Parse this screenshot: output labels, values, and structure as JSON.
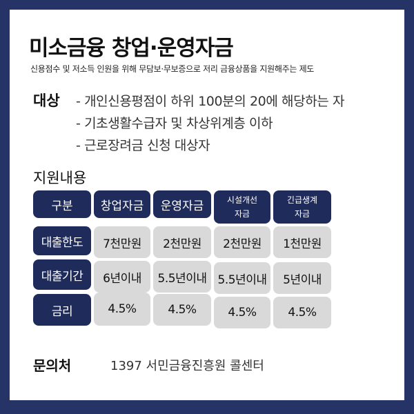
{
  "title": "미소금융 창업·운영자금",
  "subtitle": "신용점수 및 저소득 인원을 위해 무담보·무보증으로 저리 금융상품을 지원해주는 제도",
  "target": {
    "label": "대상",
    "lines": [
      "- 개인신용평점이 하위 100분의 20에 해당하는 자",
      "- 기초생활수급자 및 차상위계층 이하",
      "- 근로장려금 신청 대상자"
    ]
  },
  "support": {
    "label": "지원내용",
    "header": {
      "corner": "구분",
      "columns": [
        {
          "line1": "창업자금",
          "line2": ""
        },
        {
          "line1": "운영자금",
          "line2": ""
        },
        {
          "line1": "시설개선",
          "line2": "자금"
        },
        {
          "line1": "긴급생계",
          "line2": "자금"
        }
      ]
    },
    "rows": [
      {
        "label": "대출한도",
        "values": [
          "7천만원",
          "2천만원",
          "2천만원",
          "1천만원"
        ]
      },
      {
        "label": "대출기간",
        "values": [
          "6년이내",
          "5.5년이내",
          "5.5년이내",
          "5년이내"
        ]
      },
      {
        "label": "금리",
        "values": [
          "4.5%",
          "4.5%",
          "4.5%",
          "4.5%"
        ]
      }
    ]
  },
  "contact": {
    "label": "문의처",
    "value": "1397 서민금융진흥원 콜센터"
  }
}
